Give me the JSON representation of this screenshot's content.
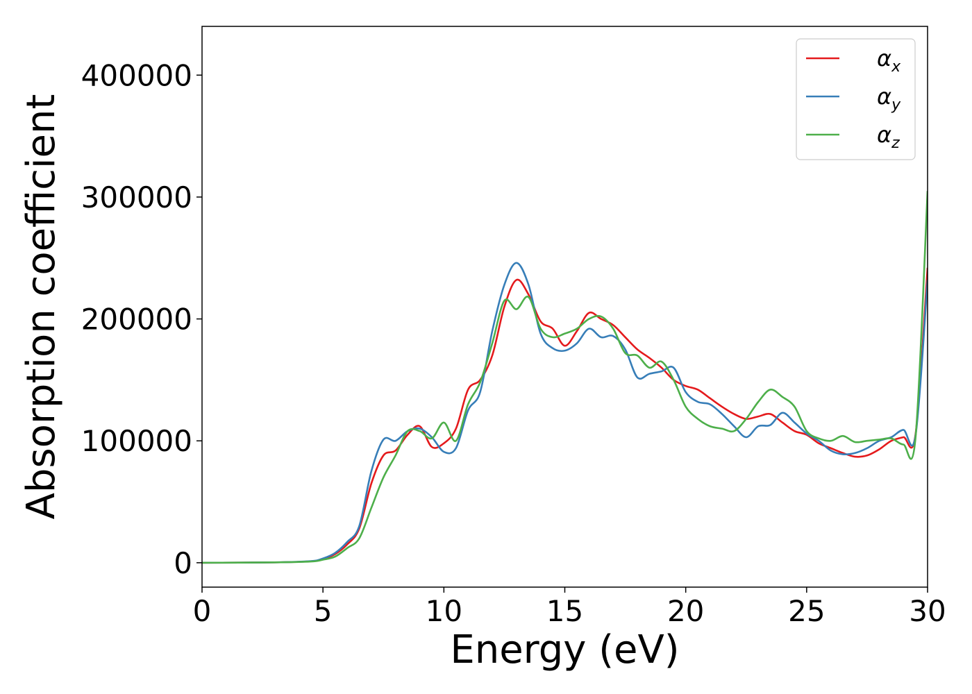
{
  "chart_data": {
    "type": "line",
    "title": "",
    "xlabel": "Energy (eV)",
    "ylabel": "Absorption coefficient",
    "xlim": [
      0,
      30
    ],
    "ylim": [
      -20000,
      440000
    ],
    "xticks": [
      "0",
      "5",
      "10",
      "15",
      "20",
      "25",
      "30"
    ],
    "yticks": [
      "0",
      "100000",
      "200000",
      "300000",
      "400000"
    ],
    "grid": false,
    "legend_position": "top-right",
    "series": [
      {
        "name": "α",
        "subscript": "x",
        "color": "#e41a1c",
        "x": [
          0,
          3,
          4.5,
          5,
          5.5,
          6,
          6.5,
          7,
          7.5,
          8,
          8.5,
          9,
          9.5,
          10,
          10.5,
          11,
          11.5,
          12,
          12.5,
          13,
          13.5,
          14,
          14.5,
          15,
          15.5,
          16,
          16.5,
          17,
          17.5,
          18,
          18.5,
          19,
          19.5,
          20,
          20.5,
          21,
          21.5,
          22,
          22.5,
          23,
          23.5,
          24,
          24.5,
          25,
          25.5,
          26,
          26.5,
          27,
          27.5,
          28,
          28.5,
          29,
          29.5,
          30
        ],
        "y": [
          0,
          300,
          1200,
          3000,
          7000,
          15000,
          28000,
          65000,
          88000,
          92000,
          105000,
          112000,
          95000,
          98000,
          110000,
          142000,
          150000,
          170000,
          210000,
          232000,
          220000,
          198000,
          192000,
          178000,
          190000,
          205000,
          200000,
          195000,
          185000,
          175000,
          168000,
          160000,
          150000,
          145000,
          142000,
          135000,
          128000,
          122000,
          118000,
          120000,
          122000,
          115000,
          108000,
          105000,
          98000,
          94000,
          90000,
          87000,
          88000,
          93000,
          100000,
          103000,
          105000,
          242000
        ]
      },
      {
        "name": "α",
        "subscript": "y",
        "color": "#377eb8",
        "x": [
          0,
          3,
          4.5,
          5,
          5.5,
          6,
          6.5,
          7,
          7.5,
          8,
          8.5,
          9,
          9.5,
          10,
          10.5,
          11,
          11.5,
          12,
          12.5,
          13,
          13.5,
          14,
          14.5,
          15,
          15.5,
          16,
          16.5,
          17,
          17.5,
          18,
          18.5,
          19,
          19.5,
          20,
          20.5,
          21,
          21.5,
          22,
          22.5,
          23,
          23.5,
          24,
          24.5,
          25,
          25.5,
          26,
          26.5,
          27,
          27.5,
          28,
          28.5,
          29,
          29.5,
          30
        ],
        "y": [
          0,
          300,
          1300,
          3500,
          8000,
          17000,
          30000,
          75000,
          101000,
          100000,
          108000,
          110000,
          103000,
          91000,
          94000,
          125000,
          140000,
          190000,
          228000,
          246000,
          228000,
          188000,
          176000,
          174000,
          180000,
          192000,
          185000,
          186000,
          175000,
          152000,
          155000,
          157000,
          160000,
          140000,
          132000,
          130000,
          122000,
          112000,
          103000,
          112000,
          113000,
          123000,
          115000,
          106000,
          100000,
          92000,
          89000,
          90000,
          94000,
          100000,
          103000,
          109000,
          104000,
          232000
        ]
      },
      {
        "name": "α",
        "subscript": "z",
        "color": "#4daf4a",
        "x": [
          0,
          3,
          4.5,
          5,
          5.5,
          6,
          6.5,
          7,
          7.5,
          8,
          8.5,
          9,
          9.5,
          10,
          10.5,
          11,
          11.5,
          12,
          12.5,
          13,
          13.5,
          14,
          14.5,
          15,
          15.5,
          16,
          16.5,
          17,
          17.5,
          18,
          18.5,
          19,
          19.5,
          20,
          20.5,
          21,
          21.5,
          22,
          22.5,
          23,
          23.5,
          24,
          24.5,
          25,
          25.5,
          26,
          26.5,
          27,
          27.5,
          28,
          28.5,
          29,
          29.5,
          30
        ],
        "y": [
          0,
          300,
          1000,
          2500,
          5000,
          12000,
          20000,
          45000,
          70000,
          88000,
          108000,
          108000,
          102000,
          115000,
          100000,
          130000,
          148000,
          180000,
          215000,
          208000,
          218000,
          192000,
          185000,
          188000,
          192000,
          200000,
          202000,
          192000,
          172000,
          170000,
          160000,
          165000,
          150000,
          128000,
          118000,
          112000,
          110000,
          108000,
          118000,
          132000,
          142000,
          136000,
          128000,
          108000,
          102000,
          100000,
          104000,
          99000,
          100000,
          101000,
          102000,
          97000,
          102000,
          305000
        ]
      }
    ]
  }
}
